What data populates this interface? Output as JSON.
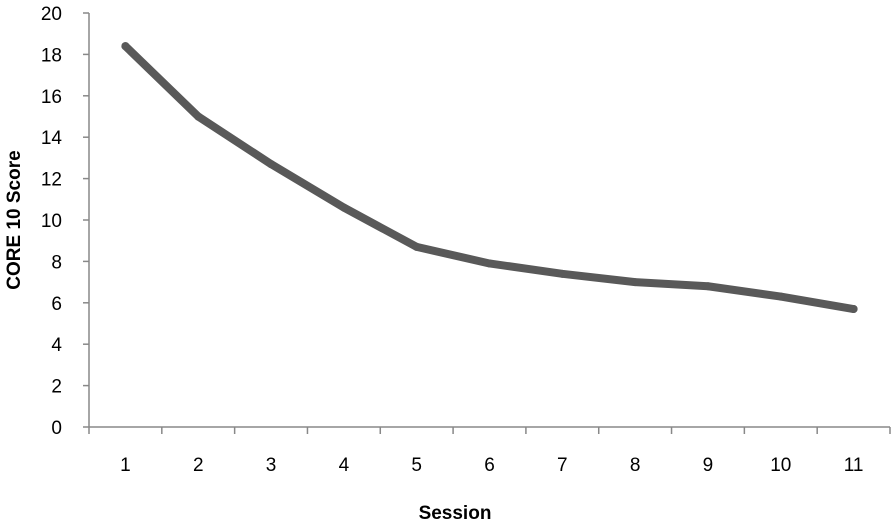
{
  "chart_data": {
    "type": "line",
    "title": "",
    "xlabel": "Session",
    "ylabel": "CORE 10 Score",
    "categories": [
      "1",
      "2",
      "3",
      "4",
      "5",
      "6",
      "7",
      "8",
      "9",
      "10",
      "11"
    ],
    "series": [
      {
        "values": [
          18.4,
          15.0,
          12.7,
          10.6,
          8.7,
          7.9,
          7.4,
          7.0,
          6.8,
          6.3,
          5.7
        ],
        "color": "#595959"
      }
    ],
    "ylim": [
      0,
      20
    ],
    "yticks": [
      0,
      2,
      4,
      6,
      8,
      10,
      12,
      14,
      16,
      18,
      20
    ],
    "grid": false,
    "legend": "none"
  },
  "colors": {
    "axis": "#888888",
    "line": "#595959",
    "text": "#000000"
  }
}
